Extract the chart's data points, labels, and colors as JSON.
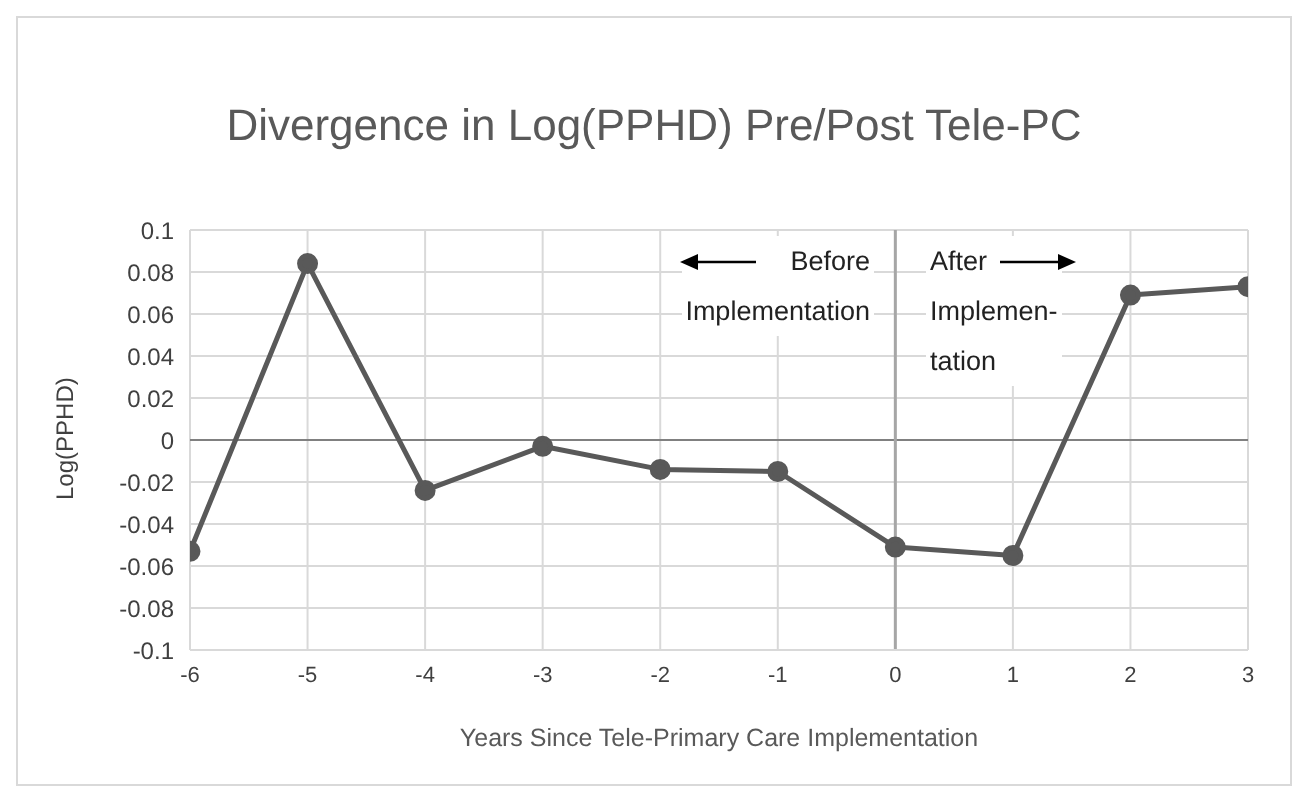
{
  "chart_data": {
    "type": "line",
    "title": "Divergence in Log(PPHD) Pre/Post Tele-PC",
    "xlabel": "Years Since Tele-Primary Care Implementation",
    "ylabel": "Log(PPHD)",
    "x": [
      -6,
      -5,
      -4,
      -3,
      -2,
      -1,
      0,
      1,
      2,
      3
    ],
    "series": [
      {
        "color": "#595959",
        "values": [
          -0.053,
          0.084,
          -0.024,
          -0.003,
          -0.014,
          -0.015,
          -0.051,
          -0.055,
          0.069,
          0.073
        ]
      }
    ],
    "xlim": [
      -6,
      3
    ],
    "xticks": [
      -6,
      -5,
      -4,
      -3,
      -2,
      -1,
      0,
      1,
      2,
      3
    ],
    "ylim": [
      -0.1,
      0.1
    ],
    "yticks": [
      -0.1,
      -0.08,
      -0.06,
      -0.04,
      -0.02,
      0,
      0.02,
      0.04,
      0.06,
      0.08,
      0.1
    ],
    "grid": true,
    "marker": "circle",
    "line_style": "solid",
    "ref_lines": [
      {
        "axis": "y",
        "value": 0,
        "color": "#808080"
      },
      {
        "axis": "x",
        "value": 0,
        "color": "#a6a6a6"
      }
    ],
    "annotations": [
      "Before\nImplementation",
      "After\nImplemen-\ntation"
    ]
  }
}
